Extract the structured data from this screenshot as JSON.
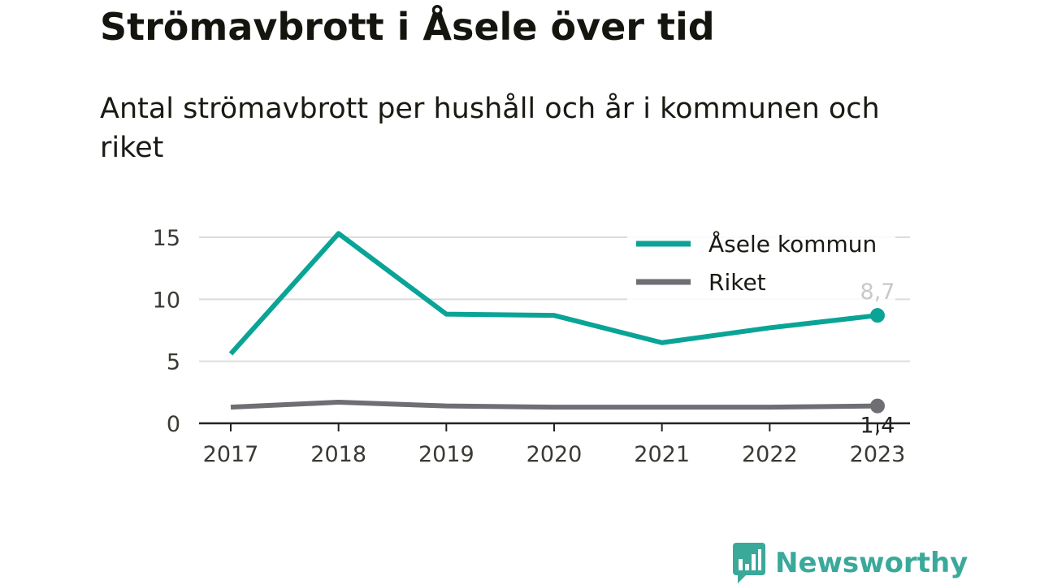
{
  "title": "Strömavbrott i Åsele över tid",
  "subtitle": "Antal strömavbrott per hushåll och år i kommunen och riket",
  "brand": {
    "name": "Newsworthy",
    "icon": "bar-chart-bubble-icon",
    "color": "#3aa99a"
  },
  "chart_data": {
    "type": "line",
    "x": [
      "2017",
      "2018",
      "2019",
      "2020",
      "2021",
      "2022",
      "2023"
    ],
    "series": [
      {
        "name": "Åsele kommun",
        "color": "#0aa496",
        "values": [
          5.6,
          15.3,
          8.8,
          8.7,
          6.5,
          7.7,
          8.7
        ],
        "end_label": "8,7"
      },
      {
        "name": "Riket",
        "color": "#6e6e73",
        "values": [
          1.3,
          1.7,
          1.4,
          1.3,
          1.3,
          1.3,
          1.4
        ],
        "end_label": "1,4"
      }
    ],
    "yticks": [
      "0",
      "5",
      "10",
      "15"
    ],
    "ylim": [
      0,
      15.5
    ],
    "grid": true,
    "legend": "top-right"
  }
}
